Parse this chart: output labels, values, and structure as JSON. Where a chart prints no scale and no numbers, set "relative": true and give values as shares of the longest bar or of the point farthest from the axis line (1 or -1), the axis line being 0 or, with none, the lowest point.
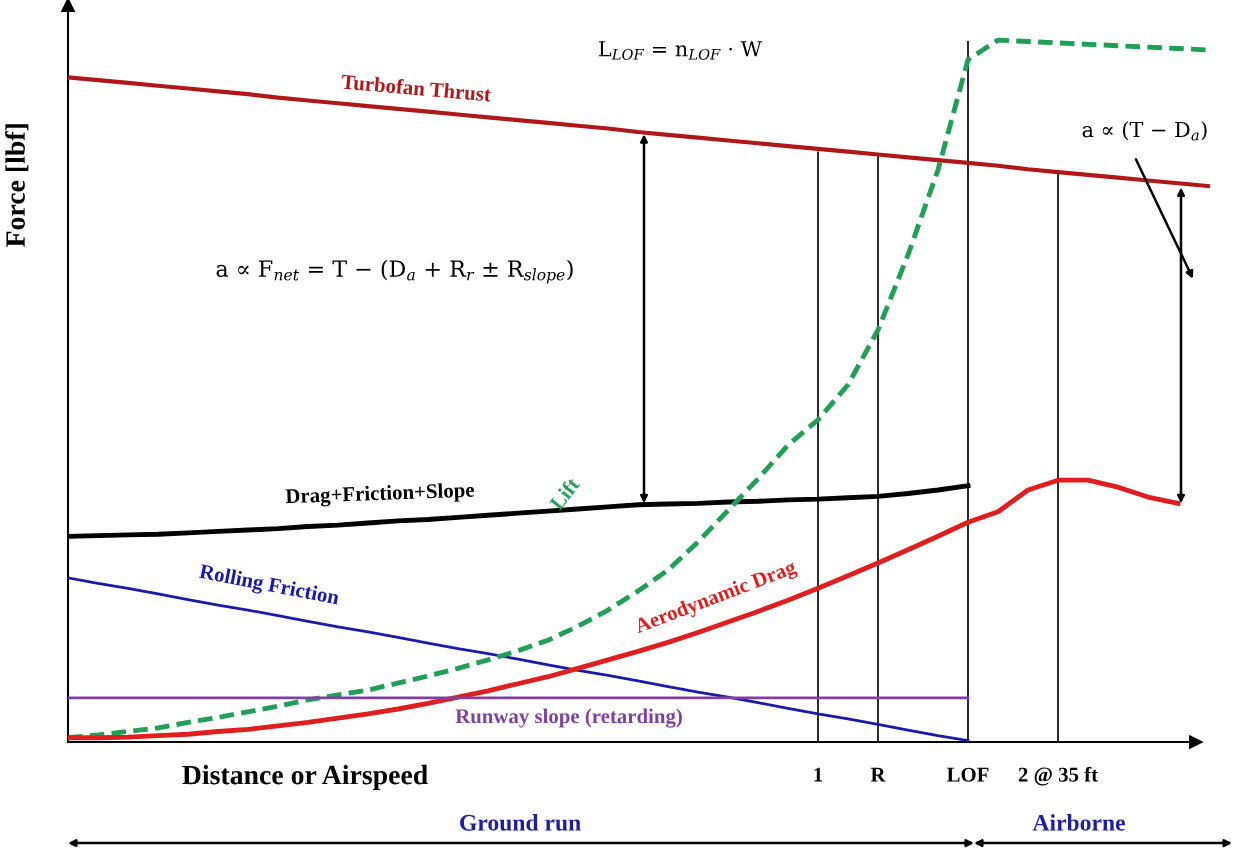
{
  "chart_data": {
    "type": "line",
    "relative": true,
    "xlabel": "Distance or Airspeed",
    "ylabel": "Force [lbf]",
    "tick_labels": "x",
    "legend": false,
    "categories": [
      null,
      null,
      null,
      null,
      null,
      null,
      null,
      null,
      null,
      null,
      null,
      null,
      null,
      null,
      null,
      null,
      null,
      null,
      null,
      null,
      null,
      null,
      null,
      null,
      null,
      "1",
      null,
      "R",
      null,
      null,
      "LOF",
      null,
      null,
      "2 @ 35 ft",
      null,
      null,
      null,
      null,
      null
    ],
    "series": [
      {
        "name": "Turbofan Thrust",
        "color": "#b01818",
        "values": [
          0.947,
          0.943,
          0.939,
          0.935,
          0.931,
          0.927,
          0.923,
          0.918,
          0.914,
          0.91,
          0.906,
          0.902,
          0.898,
          0.894,
          0.89,
          0.886,
          0.882,
          0.878,
          0.874,
          0.869,
          0.865,
          0.861,
          0.857,
          0.853,
          0.849,
          0.845,
          0.841,
          0.837,
          0.833,
          0.829,
          0.825,
          0.821,
          0.816,
          0.812,
          0.808,
          0.804,
          0.8,
          0.796,
          0.792
        ]
      },
      {
        "name": "Drag+Friction+Slope",
        "color": "#000000",
        "values": [
          0.293,
          0.294,
          0.295,
          0.296,
          0.298,
          0.3,
          0.302,
          0.304,
          0.307,
          0.309,
          0.312,
          0.315,
          0.317,
          0.32,
          0.323,
          0.326,
          0.329,
          0.332,
          0.335,
          0.338,
          0.339,
          0.34,
          0.342,
          0.343,
          0.345,
          0.346,
          0.348,
          0.35,
          0.354,
          0.359,
          0.365,
          null,
          null,
          null,
          null,
          null,
          null,
          null,
          null
        ]
      },
      {
        "name": "Rolling Friction",
        "color": "#1a1aa8",
        "values": [
          0.234,
          0.226,
          0.219,
          0.211,
          0.203,
          0.195,
          0.188,
          0.18,
          0.172,
          0.164,
          0.157,
          0.149,
          0.141,
          0.133,
          0.126,
          0.118,
          0.11,
          0.102,
          0.095,
          0.087,
          0.079,
          0.071,
          0.064,
          0.056,
          0.048,
          0.04,
          0.033,
          0.025,
          0.017,
          0.009,
          0.002,
          null,
          null,
          null,
          null,
          null,
          null,
          null,
          null
        ]
      },
      {
        "name": "Lift",
        "color": "#1fa055",
        "line_style": "dashed",
        "values": [
          0.006,
          0.01,
          0.015,
          0.02,
          0.028,
          0.035,
          0.043,
          0.051,
          0.06,
          0.067,
          0.074,
          0.084,
          0.094,
          0.105,
          0.117,
          0.13,
          0.145,
          0.165,
          0.188,
          0.215,
          0.245,
          0.285,
          0.33,
          0.375,
          0.423,
          0.459,
          0.509,
          0.587,
          0.694,
          0.815,
          0.972,
          1.0,
          0.998,
          0.996,
          0.994,
          0.992,
          0.99,
          0.988,
          0.986
        ]
      },
      {
        "name": "Aerodynamic Drag",
        "color": "#e01e1e",
        "values": [
          0.006,
          0.006,
          0.007,
          0.009,
          0.011,
          0.015,
          0.018,
          0.023,
          0.028,
          0.034,
          0.04,
          0.047,
          0.055,
          0.064,
          0.073,
          0.083,
          0.093,
          0.105,
          0.117,
          0.129,
          0.142,
          0.156,
          0.171,
          0.186,
          0.202,
          0.219,
          0.237,
          0.255,
          0.274,
          0.293,
          0.313,
          0.328,
          0.359,
          0.373,
          0.373,
          0.363,
          0.349,
          0.34,
          null
        ]
      },
      {
        "name": "Runway slope (retarding)",
        "color": "#8040a0",
        "values": [
          0.063,
          0.063,
          0.063,
          0.063,
          0.063,
          0.063,
          0.063,
          0.063,
          0.063,
          0.063,
          0.063,
          0.063,
          0.063,
          0.063,
          0.063,
          0.063,
          0.063,
          0.063,
          0.063,
          0.063,
          0.063,
          0.063,
          0.063,
          0.063,
          0.063,
          0.063,
          0.063,
          0.063,
          0.063,
          0.063,
          0.063,
          null,
          null,
          null,
          null,
          null,
          null,
          null,
          null
        ]
      }
    ],
    "ref_lines": [
      {
        "axis": "x",
        "value": "1",
        "color": "#000000"
      },
      {
        "axis": "x",
        "value": "R",
        "color": "#000000"
      },
      {
        "axis": "x",
        "value": "LOF",
        "color": "#000000"
      },
      {
        "axis": "x",
        "value": "2 @ 35 ft",
        "color": "#000000"
      }
    ],
    "annotations": [
      "a ∝ F$_{net}$ = T − (D$_{a}$ + R$_{r}$ ± R$_{slope}$)",
      "L$_{LOF}$ = n$_{LOF}$ · W",
      "a ∝ (T − D$_{a}$)",
      "Ground run",
      "Airborne"
    ]
  }
}
